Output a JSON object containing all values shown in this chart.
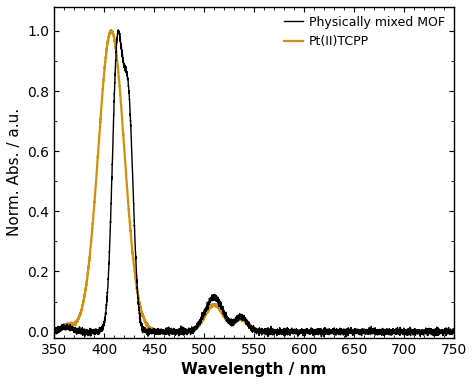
{
  "xlim": [
    350,
    750
  ],
  "ylim": [
    -0.02,
    1.08
  ],
  "xlabel": "Wavelength / nm",
  "ylabel": "Norm. Abs. / a.u.",
  "legend_labels": [
    "Physically mixed MOF",
    "Pt(II)TCPP"
  ],
  "line_colors": [
    "#000000",
    "#D4900A"
  ],
  "xticks": [
    350,
    400,
    450,
    500,
    550,
    600,
    650,
    700,
    750
  ],
  "yticks": [
    0.0,
    0.2,
    0.4,
    0.6,
    0.8,
    1.0
  ],
  "background_color": "#ffffff",
  "linewidth_black": 1.0,
  "linewidth_orange": 1.6
}
